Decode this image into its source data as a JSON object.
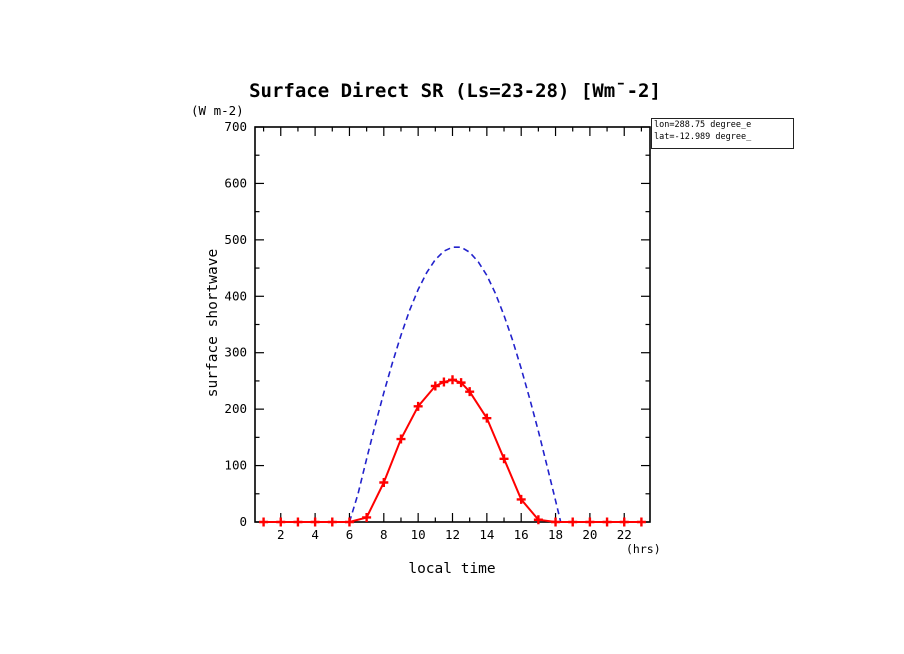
{
  "title": "Surface Direct SR (Ls=23-28) [Wm¯-2]",
  "labels": {
    "y_unit": "(W m-2)",
    "ylabel": "surface shortwave",
    "xlabel": "local time",
    "x_unit": "(hrs)"
  },
  "annotation": {
    "line1": "lon=288.75 degree_e",
    "line2": "lat=-12.989 degree_"
  },
  "colors": {
    "axis": "#000000",
    "dashed_series": "#2222cc",
    "marker_series": "#ff0000"
  },
  "chart_data": {
    "type": "line",
    "title": "Surface Direct SR (Ls=23-28) [Wm¯-2]",
    "xlabel": "local time (hrs)",
    "ylabel": "surface shortwave (W m-2)",
    "xlim": [
      0.5,
      23.5
    ],
    "ylim": [
      0,
      700
    ],
    "x_major_ticks": [
      2,
      4,
      6,
      8,
      10,
      12,
      14,
      16,
      18,
      20,
      22
    ],
    "x_minor_step": 1,
    "y_major_ticks": [
      0,
      100,
      200,
      300,
      400,
      500,
      600,
      700
    ],
    "y_minor_step": 50,
    "grid": false,
    "legend": "none",
    "series": [
      {
        "name": "blue-dashed-curve",
        "color": "#2222cc",
        "line_style": "dashed",
        "marker": "none",
        "points": [
          [
            6,
            0
          ],
          [
            6.5,
            50
          ],
          [
            7,
            112
          ],
          [
            7.5,
            172
          ],
          [
            8,
            229
          ],
          [
            8.5,
            282
          ],
          [
            9,
            331
          ],
          [
            9.5,
            375
          ],
          [
            10,
            412
          ],
          [
            10.5,
            442
          ],
          [
            11,
            465
          ],
          [
            11.5,
            480
          ],
          [
            12,
            487
          ],
          [
            12.5,
            487
          ],
          [
            13,
            478
          ],
          [
            13.5,
            461
          ],
          [
            14,
            437
          ],
          [
            14.5,
            405
          ],
          [
            15,
            366
          ],
          [
            15.5,
            322
          ],
          [
            16,
            272
          ],
          [
            16.5,
            218
          ],
          [
            17,
            161
          ],
          [
            17.5,
            100
          ],
          [
            18,
            38
          ],
          [
            18.3,
            0
          ]
        ]
      },
      {
        "name": "red-solid-curve",
        "color": "#ff0000",
        "line_style": "solid",
        "marker": "plus",
        "points": [
          [
            1,
            0
          ],
          [
            2,
            0
          ],
          [
            3,
            0
          ],
          [
            4,
            0
          ],
          [
            5,
            0
          ],
          [
            6,
            0
          ],
          [
            7,
            8
          ],
          [
            8,
            70
          ],
          [
            9,
            147
          ],
          [
            10,
            205
          ],
          [
            11,
            241
          ],
          [
            11.5,
            248
          ],
          [
            12,
            252
          ],
          [
            12.5,
            247
          ],
          [
            13,
            231
          ],
          [
            14,
            184
          ],
          [
            15,
            112
          ],
          [
            16,
            40
          ],
          [
            17,
            4
          ],
          [
            18,
            0
          ],
          [
            19,
            0
          ],
          [
            20,
            0
          ],
          [
            21,
            0
          ],
          [
            22,
            0
          ],
          [
            23,
            0
          ]
        ]
      }
    ]
  }
}
